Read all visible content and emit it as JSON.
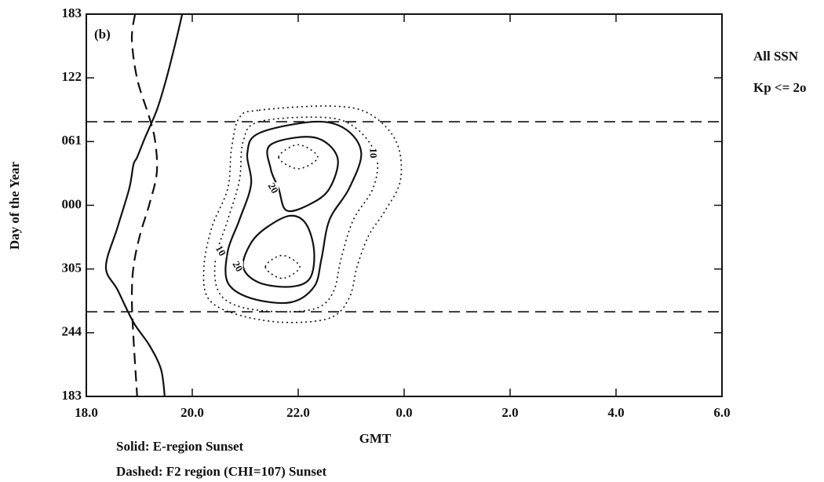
{
  "chart_data": {
    "type": "contour",
    "panel_label": "(b)",
    "x_label": "GMT",
    "y_label": "Day of the Year",
    "annotations": [
      "All SSN",
      "Kp <= 2o"
    ],
    "notes": [
      "Solid: E-region Sunset",
      "Dashed: F2 region (CHI=107) Sunset"
    ],
    "xlim": [
      18,
      30
    ],
    "xticks": [
      {
        "value": 18,
        "label": "18.0"
      },
      {
        "value": 20,
        "label": "20.0"
      },
      {
        "value": 22,
        "label": "22.0"
      },
      {
        "value": 24,
        "label": "0.0"
      },
      {
        "value": 26,
        "label": "2.0"
      },
      {
        "value": 28,
        "label": "4.0"
      },
      {
        "value": 30,
        "label": "6.0"
      }
    ],
    "ylim": [
      183,
      549
    ],
    "yticks": [
      183,
      244,
      305,
      {
        "value": 366,
        "label": "000"
      },
      {
        "value": 427,
        "label": "061"
      },
      {
        "value": 488,
        "label": "122"
      },
      {
        "value": 549,
        "label": "183"
      }
    ],
    "series": [
      {
        "style": "solid",
        "x": [
          19.81,
          19.7,
          19.51,
          19.33,
          19.11,
          18.96,
          18.89,
          18.81,
          18.59,
          18.37,
          18.59,
          18.89,
          19.19,
          19.41,
          19.48
        ],
        "y": [
          549,
          525,
          487,
          457,
          431,
          412,
          405,
          382,
          345,
          307,
          285,
          254,
          232,
          209,
          183
        ]
      },
      {
        "style": "dashed",
        "x": [
          18.92,
          18.86,
          18.96,
          19.19,
          19.3,
          19.33,
          19.19,
          19.01,
          18.89,
          18.86,
          18.89,
          18.96
        ],
        "y": [
          549,
          525,
          487,
          450,
          427,
          397,
          367,
          337,
          307,
          277,
          239,
          183
        ]
      }
    ],
    "hlines": [
      446,
      264
    ],
    "contours": [
      {
        "style": "dotted",
        "x": [
          21.26,
          22.59,
          23.33,
          23.85,
          23.93,
          23.63,
          23.33,
          23.11,
          22.96,
          22.59,
          21.7,
          20.81,
          20.3,
          20.22,
          20.37,
          20.67,
          20.74,
          20.89
        ],
        "y": [
          457,
          461,
          454,
          427,
          390,
          360,
          337,
          307,
          277,
          258,
          254,
          262,
          277,
          307,
          345,
          382,
          420,
          450
        ]
      },
      {
        "style": "dotted",
        "x": [
          21.26,
          22.52,
          23.11,
          23.48,
          23.41,
          23.04,
          22.81,
          22.67,
          22.37,
          21.7,
          20.89,
          20.49,
          20.44,
          20.67,
          20.89,
          20.96
        ],
        "y": [
          446,
          450,
          439,
          412,
          382,
          352,
          315,
          284,
          268,
          264,
          269,
          284,
          315,
          352,
          390,
          427
        ]
      },
      {
        "style": "solid",
        "label": "10",
        "x": [
          21.26,
          22.3,
          22.89,
          23.19,
          22.96,
          22.59,
          22.44,
          22.3,
          21.85,
          21.11,
          20.67,
          20.67,
          20.89,
          21.11,
          21.04
        ],
        "y": [
          435,
          446,
          439,
          416,
          382,
          352,
          315,
          288,
          273,
          277,
          292,
          322,
          352,
          386,
          416
        ]
      },
      {
        "style": "solid",
        "label": "20",
        "x": [
          21.48,
          22.3,
          22.74,
          22.59,
          22.22,
          21.78,
          21.63,
          21.48
        ],
        "y": [
          424,
          431,
          412,
          382,
          367,
          361,
          382,
          401
        ]
      },
      {
        "style": "solid",
        "label": "20",
        "x": [
          21.41,
          21.85,
          22.15,
          22.3,
          22.22,
          21.85,
          21.26,
          20.96,
          21.11
        ],
        "y": [
          345,
          356,
          348,
          322,
          296,
          288,
          292,
          307,
          330
        ]
      },
      {
        "style": "dotted",
        "x": [
          21.63,
          22.0,
          22.37,
          22.0
        ],
        "y": [
          412,
          424,
          412,
          401
        ]
      },
      {
        "style": "dotted",
        "x": [
          21.38,
          21.7,
          22.03,
          21.7
        ],
        "y": [
          307,
          318,
          307,
          296
        ]
      }
    ]
  }
}
